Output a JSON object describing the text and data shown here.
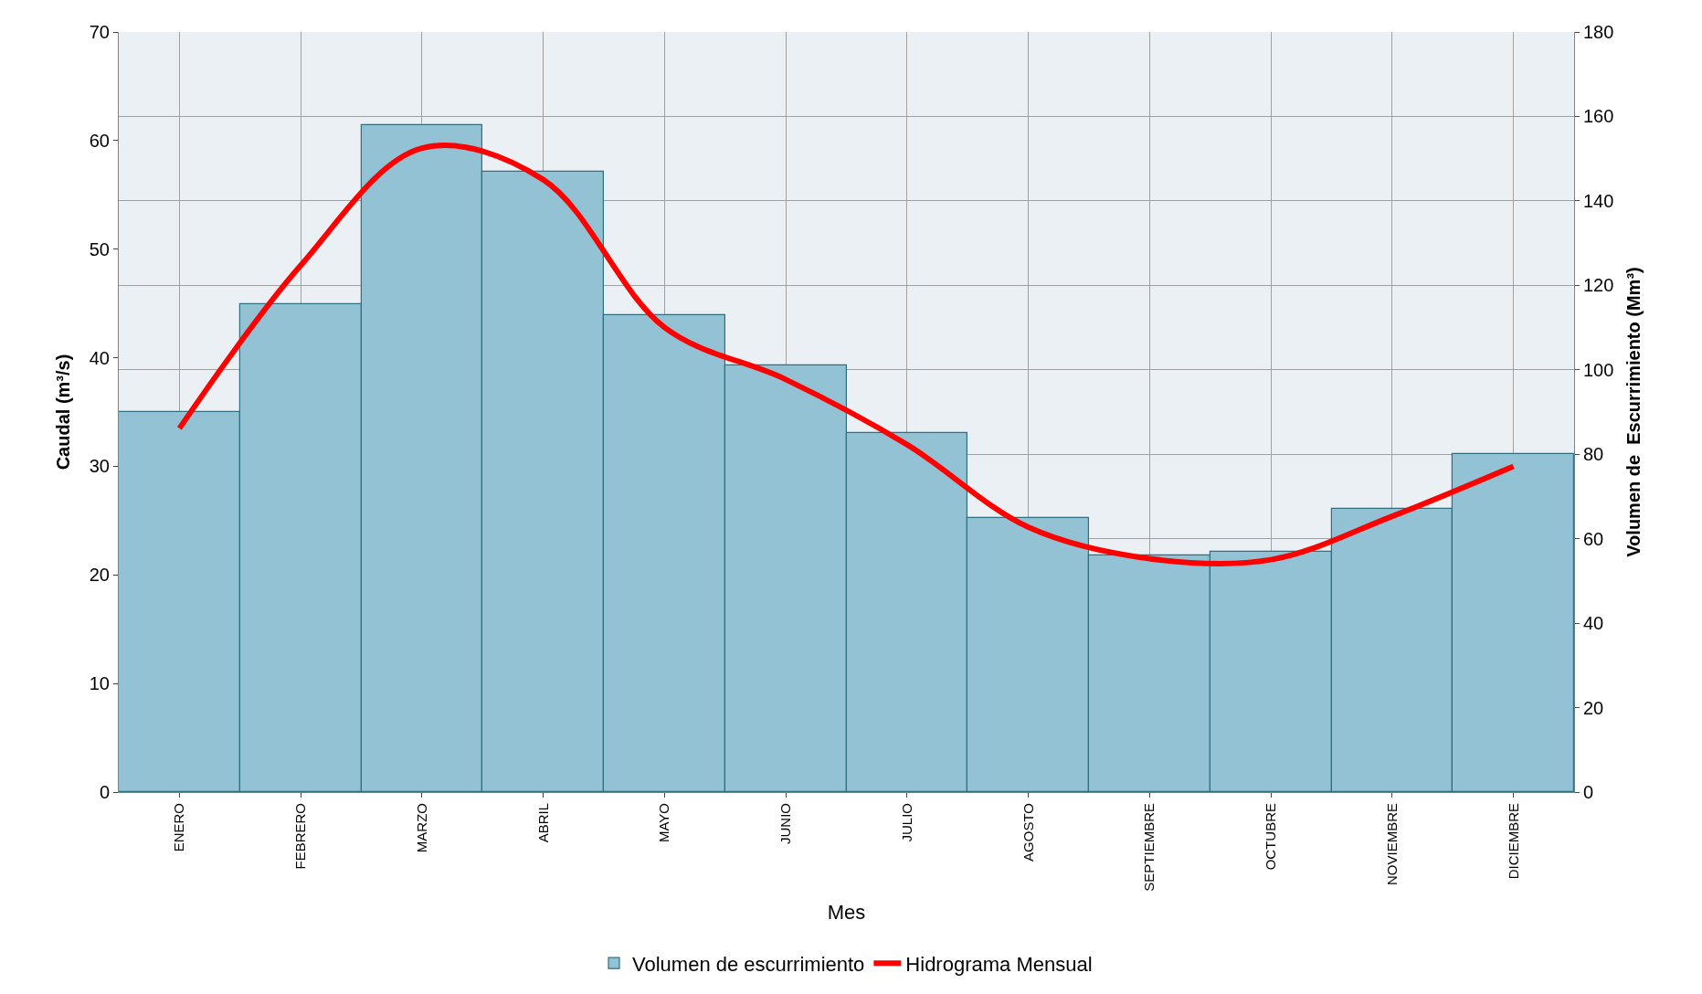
{
  "chart_data": {
    "type": "bar",
    "xlabel": "Mes",
    "ylabel": "Caudal (m³/s)",
    "y2label": "Volumen de  Escurrimiento (Mm³)",
    "categories": [
      "ENERO",
      "FEBRERO",
      "MARZO",
      "ABRIL",
      "MAYO",
      "JUNIO",
      "JULIO",
      "AGOSTO",
      "SEPTIEMBRE",
      "OCTUBRE",
      "NOVIEMBRE",
      "DICIEMBRE"
    ],
    "series": [
      {
        "name": "Volumen de escurrimiento",
        "axis": "y2",
        "color": "#92c2d4",
        "values": [
          90,
          115.5,
          158,
          147,
          113,
          101,
          85,
          65,
          56,
          57,
          67,
          80
        ]
      },
      {
        "name": "Hidrograma Mensual",
        "type": "line",
        "axis": "y",
        "color": "#ff0000",
        "values": [
          33.5,
          48.5,
          59.3,
          56.4,
          42.8,
          38,
          32,
          24.4,
          21.5,
          21.4,
          25.4,
          30
        ]
      }
    ],
    "ylim": [
      0,
      70
    ],
    "yticks": [
      0,
      10,
      20,
      30,
      40,
      50,
      60,
      70
    ],
    "y2lim": [
      0,
      180
    ],
    "y2ticks": [
      0,
      20,
      40,
      60,
      80,
      100,
      120,
      140,
      160,
      180
    ],
    "grid": true,
    "legend": "bottom",
    "marker": "none",
    "line_style": "solid"
  }
}
